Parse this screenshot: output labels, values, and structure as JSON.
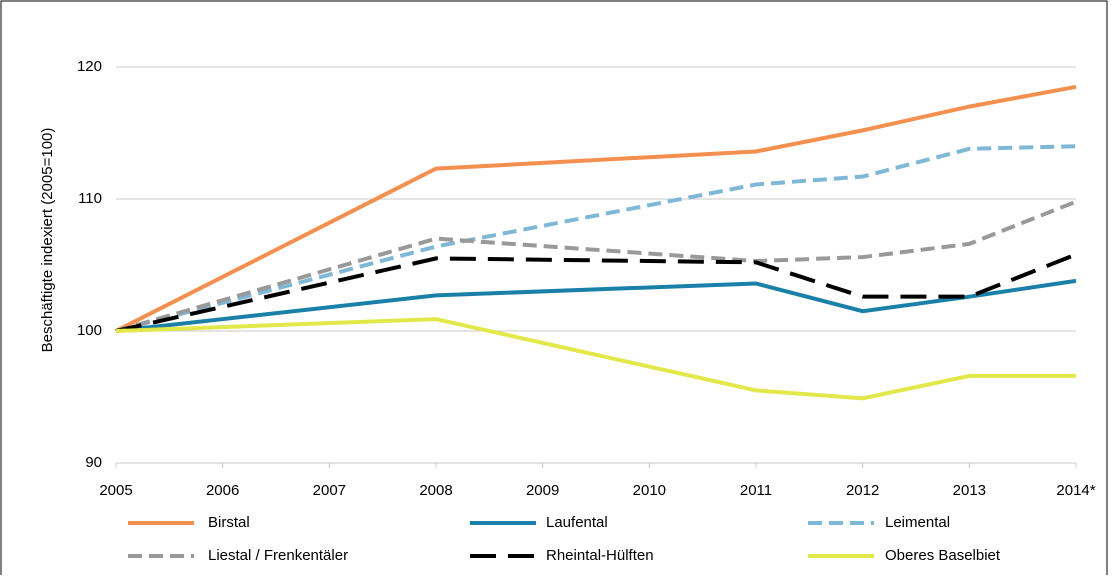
{
  "chart_data": {
    "type": "line",
    "y_label": "Beschäftigte indexiert (2005=100)",
    "x": [
      2005,
      2008,
      2011,
      2012,
      2013,
      2014
    ],
    "xlim": [
      2005,
      2014
    ],
    "xticks": [
      2005,
      2006,
      2007,
      2008,
      2009,
      2010,
      2011,
      2012,
      2013,
      {
        "value": 2014,
        "label": "2014*"
      }
    ],
    "ylim": [
      90,
      124
    ],
    "yticks": [
      90,
      100,
      110,
      120
    ],
    "grid": true,
    "legend": "bottom",
    "series": [
      {
        "name": "Birstal",
        "color": "#f4904f",
        "line_style": "solid",
        "values": [
          100,
          112.3,
          113.6,
          115.2,
          117.0,
          118.5
        ]
      },
      {
        "name": "Laufental",
        "color": "#1a80a8",
        "line_style": "solid",
        "values": [
          100,
          102.7,
          103.6,
          101.5,
          102.6,
          103.8
        ]
      },
      {
        "name": "Leimental",
        "color": "#7fb8d6",
        "line_style": "dashed",
        "values": [
          100,
          106.4,
          111.1,
          111.7,
          113.8,
          114.0
        ]
      },
      {
        "name": "Liestal / Frenkentäler",
        "color": "#999999",
        "line_style": "dashed",
        "values": [
          100,
          107.0,
          105.3,
          105.6,
          106.6,
          109.8
        ]
      },
      {
        "name": "Rheintal-Hülften",
        "color": "#000000",
        "line_style": "long-dash",
        "values": [
          100,
          105.5,
          105.2,
          102.6,
          102.6,
          105.8
        ]
      },
      {
        "name": "Oberes Baselbiet",
        "color": "#e3e84a",
        "line_style": "solid",
        "values": [
          100,
          100.9,
          95.5,
          94.9,
          96.6,
          96.6
        ]
      }
    ]
  }
}
